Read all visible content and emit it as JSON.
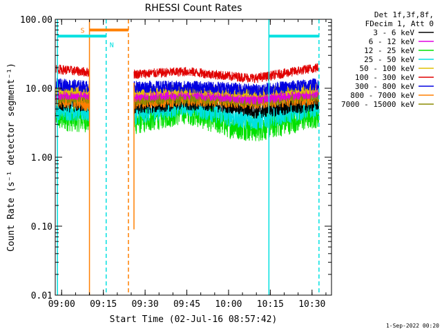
{
  "chart_data": {
    "type": "line",
    "title": "RHESSI Count Rates",
    "xlabel": "Start Time (02-Jul-16 08:57:42)",
    "ylabel": "Count Rate (s⁻¹ detector segment⁻¹)",
    "y_scale": "log",
    "ylim": [
      0.01,
      100
    ],
    "xlim": [
      "08:57:42",
      "10:37:00"
    ],
    "x_ticks": [
      "09:00",
      "09:15",
      "09:30",
      "09:45",
      "10:00",
      "10:15",
      "10:30"
    ],
    "y_ticks": [
      "0.01",
      "0.10",
      "1.00",
      "10.00",
      "100.00"
    ],
    "legend_position": "top-right",
    "legend_header": [
      "Det 1f,3f,8f,",
      "FDecim 1, Att 0"
    ],
    "series": [
      {
        "name": "3 - 6 keV",
        "color": "#000000",
        "level": 6.0,
        "points": [
          [
            "08:58",
            6.0
          ],
          [
            "09:10",
            6.0
          ],
          [
            "09:26",
            5.5
          ],
          [
            "09:45",
            6.5
          ],
          [
            "10:00",
            5.8
          ],
          [
            "10:10",
            4.8
          ],
          [
            "10:32",
            6.2
          ]
        ]
      },
      {
        "name": "6 - 12 keV",
        "color": "#e000e0",
        "level": 8.5,
        "points": [
          [
            "08:58",
            8.5
          ],
          [
            "09:10",
            8.5
          ],
          [
            "09:26",
            8.0
          ],
          [
            "09:45",
            8.5
          ],
          [
            "10:00",
            7.8
          ],
          [
            "10:10",
            7.2
          ],
          [
            "10:32",
            9.0
          ]
        ]
      },
      {
        "name": "12 - 25 keV",
        "color": "#00e000",
        "level": 3.8,
        "points": [
          [
            "08:58",
            3.8
          ],
          [
            "09:10",
            3.6
          ],
          [
            "09:26",
            3.3
          ],
          [
            "09:45",
            4.8
          ],
          [
            "10:00",
            3.0
          ],
          [
            "10:10",
            2.6
          ],
          [
            "10:32",
            4.2
          ]
        ]
      },
      {
        "name": "25 - 50 keV",
        "color": "#00e0e0",
        "level": 5.0,
        "points": [
          [
            "08:58",
            5.0
          ],
          [
            "09:10",
            4.6
          ],
          [
            "09:26",
            4.2
          ],
          [
            "09:45",
            5.8
          ],
          [
            "10:00",
            4.0
          ],
          [
            "10:10",
            3.5
          ],
          [
            "10:32",
            5.5
          ]
        ]
      },
      {
        "name": "50 - 100 keV",
        "color": "#e0c000",
        "level": 9.5,
        "points": [
          [
            "08:58",
            9.5
          ],
          [
            "09:10",
            9.5
          ],
          [
            "09:26",
            9.0
          ],
          [
            "09:45",
            9.5
          ],
          [
            "10:00",
            9.0
          ],
          [
            "10:10",
            8.8
          ],
          [
            "10:32",
            10.0
          ]
        ]
      },
      {
        "name": "100 - 300 keV",
        "color": "#e00000",
        "level": 18,
        "points": [
          [
            "08:58",
            19
          ],
          [
            "09:10",
            17
          ],
          [
            "09:26",
            16
          ],
          [
            "09:45",
            17.5
          ],
          [
            "10:00",
            15
          ],
          [
            "10:10",
            14
          ],
          [
            "10:32",
            20
          ]
        ]
      },
      {
        "name": "300 - 800 keV",
        "color": "#0000e0",
        "level": 11,
        "points": [
          [
            "08:58",
            11.5
          ],
          [
            "09:10",
            10.5
          ],
          [
            "09:26",
            10.5
          ],
          [
            "09:45",
            10.5
          ],
          [
            "10:00",
            10.0
          ],
          [
            "10:10",
            9.5
          ],
          [
            "10:32",
            11.5
          ]
        ]
      },
      {
        "name": "800 - 7000 keV",
        "color": "#ff7f00",
        "level": 7.0,
        "points": [
          [
            "08:58",
            7.0
          ],
          [
            "09:10",
            6.0
          ],
          [
            "09:26",
            6.5
          ],
          [
            "09:45",
            7.2
          ],
          [
            "10:00",
            6.8
          ],
          [
            "10:10",
            6.5
          ],
          [
            "10:32",
            7.5
          ]
        ]
      },
      {
        "name": "7000 - 15000 keV",
        "color": "#8a8a00",
        "level": 7.5,
        "points": [
          [
            "08:58",
            7.5
          ],
          [
            "09:10",
            7.5
          ],
          [
            "09:26",
            7.0
          ],
          [
            "09:45",
            7.5
          ],
          [
            "10:00",
            7.0
          ],
          [
            "10:10",
            6.8
          ],
          [
            "10:32",
            7.8
          ]
        ]
      }
    ],
    "data_gap": [
      "09:10:00",
      "09:26:00"
    ],
    "vertical_markers": [
      {
        "time": "08:58:30",
        "color": "#00e0e0",
        "style": "solid"
      },
      {
        "time": "09:10:00",
        "color": "#ff7f00",
        "style": "solid"
      },
      {
        "time": "09:16:00",
        "color": "#00e0e0",
        "style": "dashed"
      },
      {
        "time": "09:24:00",
        "color": "#ff7f00",
        "style": "dashed"
      },
      {
        "time": "10:14:30",
        "color": "#00e0e0",
        "style": "solid"
      },
      {
        "time": "10:32:30",
        "color": "#00e0e0",
        "style": "dashed"
      }
    ],
    "flag_bars": [
      {
        "label": "S",
        "color": "#ff7f00",
        "start": "09:10:00",
        "end": "09:24:00",
        "value": 70
      },
      {
        "label": "N",
        "color": "#00e0e0",
        "start": "08:58:30",
        "end": "09:16:00",
        "value": 57
      },
      {
        "label": "",
        "color": "#00e0e0",
        "start": "10:14:30",
        "end": "10:32:30",
        "value": 57
      }
    ],
    "footer_date": "1-Sep-2022 00:20"
  }
}
